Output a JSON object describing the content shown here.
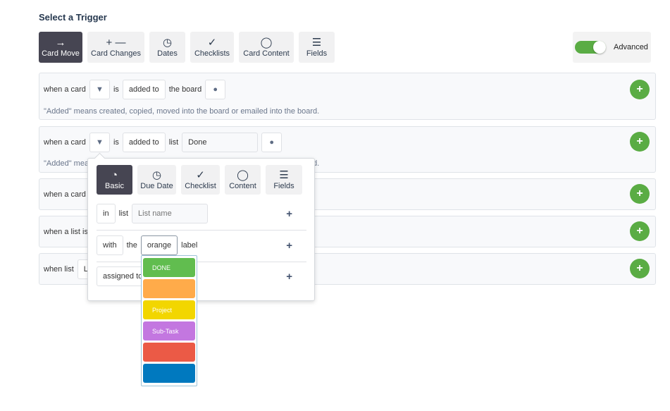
{
  "title": "Select a Trigger",
  "tabs": [
    {
      "icon": "arrow-right-icon",
      "glyph": "→",
      "label": "Card Move"
    },
    {
      "icon": "plus-minus-icon",
      "glyph": "+ —",
      "label": "Card Changes"
    },
    {
      "icon": "clock-icon",
      "glyph": "◷",
      "label": "Dates"
    },
    {
      "icon": "check-icon",
      "glyph": "✓",
      "label": "Checklists"
    },
    {
      "icon": "speech-bubble-icon",
      "glyph": "◯",
      "label": "Card Content"
    },
    {
      "icon": "lines-icon",
      "glyph": "☰",
      "label": "Fields"
    }
  ],
  "advanced": {
    "label": "Advanced",
    "on": true
  },
  "rows": [
    {
      "when": "when a card",
      "is": "is",
      "action": "added to",
      "target": "the board",
      "note": "\"Added\" means created, copied, moved into the board or emailed into the board."
    },
    {
      "when": "when a card",
      "is": "is",
      "action": "added to",
      "target": "list",
      "list_value": "Done",
      "note": "\"Added\" means created, copied, moved into the board or emailed into the board."
    },
    {
      "when": "when a card"
    },
    {
      "when": "when a list is"
    },
    {
      "when": "when list",
      "value": "L"
    }
  ],
  "popover": {
    "tabs": [
      {
        "icon": "sticker-icon",
        "glyph": "◔",
        "label": "Basic"
      },
      {
        "icon": "clock-icon",
        "glyph": "◷",
        "label": "Due Date"
      },
      {
        "icon": "check-icon",
        "glyph": "✓",
        "label": "Checklist"
      },
      {
        "icon": "speech-bubble-icon",
        "glyph": "◯",
        "label": "Content"
      },
      {
        "icon": "lines-icon",
        "glyph": "☰",
        "label": "Fields"
      }
    ],
    "in": "in",
    "list": "list",
    "list_placeholder": "List name",
    "with": "with",
    "the": "the",
    "label_value": "orange",
    "label": "label",
    "assigned": "assigned to"
  },
  "labels": [
    {
      "name": "DONE",
      "color": "#61bd4f"
    },
    {
      "name": "",
      "color": "#ffab4a"
    },
    {
      "name": "Project",
      "color": "#f2d600"
    },
    {
      "name": "Sub-Task",
      "color": "#c377e0"
    },
    {
      "name": "",
      "color": "#eb5a46"
    },
    {
      "name": "",
      "color": "#0079bf"
    }
  ]
}
